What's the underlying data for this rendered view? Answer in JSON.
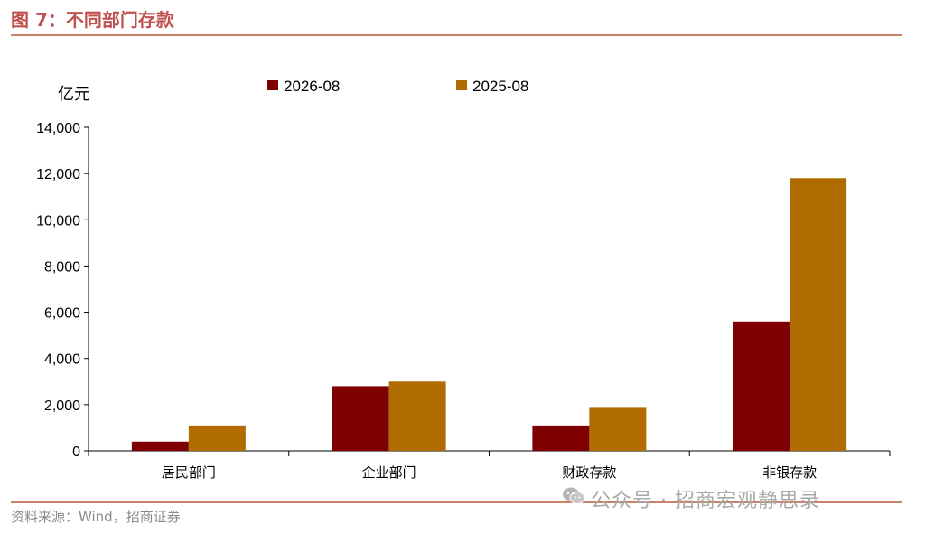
{
  "header": {
    "title": "图 7：不同部门存款"
  },
  "footer": {
    "source": "资料来源：Wind，招商证券",
    "watermark": "公众号 · 招商宏观静思录"
  },
  "colors": {
    "series_2026": "#7f0000",
    "series_2025": "#b06c00",
    "title": "#c0504d",
    "rule": "#c8836a"
  },
  "chart_data": {
    "type": "bar",
    "title": "",
    "xlabel": "",
    "ylabel": "亿元",
    "ylim": [
      0,
      14000
    ],
    "yticks": [
      "14,000",
      "12,000",
      "10,000",
      "8,000",
      "6,000",
      "4,000",
      "2,000",
      "0"
    ],
    "ytick_values": [
      14000,
      12000,
      10000,
      8000,
      6000,
      4000,
      2000,
      0
    ],
    "categories": [
      "居民部门",
      "企业部门",
      "财政存款",
      "非银存款"
    ],
    "series": [
      {
        "name": "2026-08",
        "values": [
          400,
          2800,
          1100,
          5600
        ]
      },
      {
        "name": "2025-08",
        "values": [
          1100,
          3000,
          1900,
          11800
        ]
      }
    ],
    "legend": "top",
    "grid": false
  }
}
